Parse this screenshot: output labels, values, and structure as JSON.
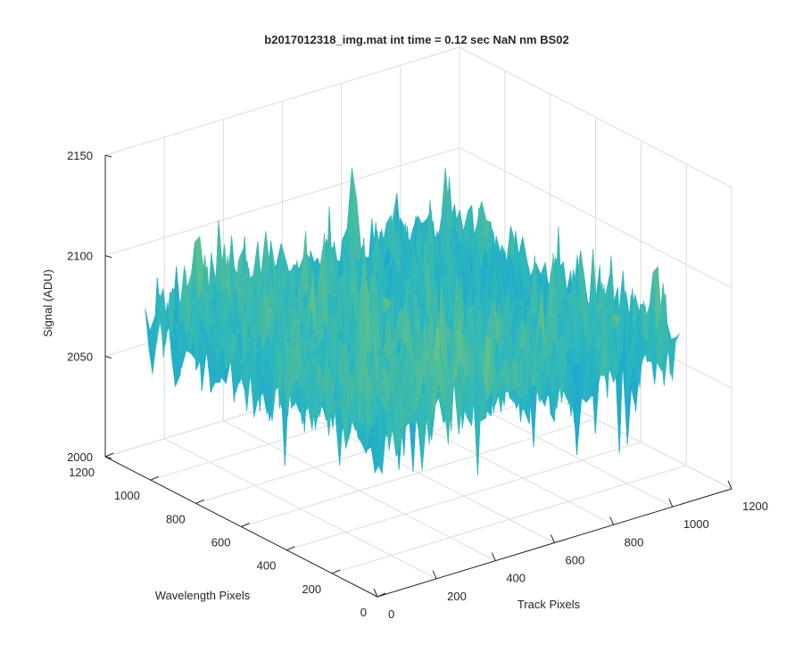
{
  "figure": {
    "background": "#ffffff",
    "axis_color": "#262626",
    "grid_color": "#dcdcdc"
  },
  "chart_data": {
    "type": "surface",
    "title": "b2017012318_img.mat int time = 0.12 sec  NaN nm BS02",
    "xlabel": "Track Pixels",
    "ylabel": "Wavelength Pixels",
    "zlabel": "Signal (ADU)",
    "xlim": [
      0,
      1200
    ],
    "ylim": [
      0,
      1200
    ],
    "zlim": [
      2000,
      2150
    ],
    "x_ticks": [
      "0",
      "200",
      "400",
      "600",
      "800",
      "1000",
      "1200"
    ],
    "y_ticks": [
      "0",
      "200",
      "400",
      "600",
      "800",
      "1000",
      "1200"
    ],
    "z_ticks": [
      "2000",
      "2050",
      "2100",
      "2150"
    ],
    "data_extent": {
      "x": [
        0,
        1024
      ],
      "y": [
        0,
        1024
      ]
    },
    "z_range_observed": [
      2040,
      2140
    ],
    "z_mean_approx": 2080,
    "colormap": "parula",
    "colormap_stops": [
      "#0072bd",
      "#1aa1d8",
      "#2cb7bd",
      "#5cc08e",
      "#b6c64f",
      "#e6bd3a"
    ],
    "grid": true,
    "box": true
  }
}
